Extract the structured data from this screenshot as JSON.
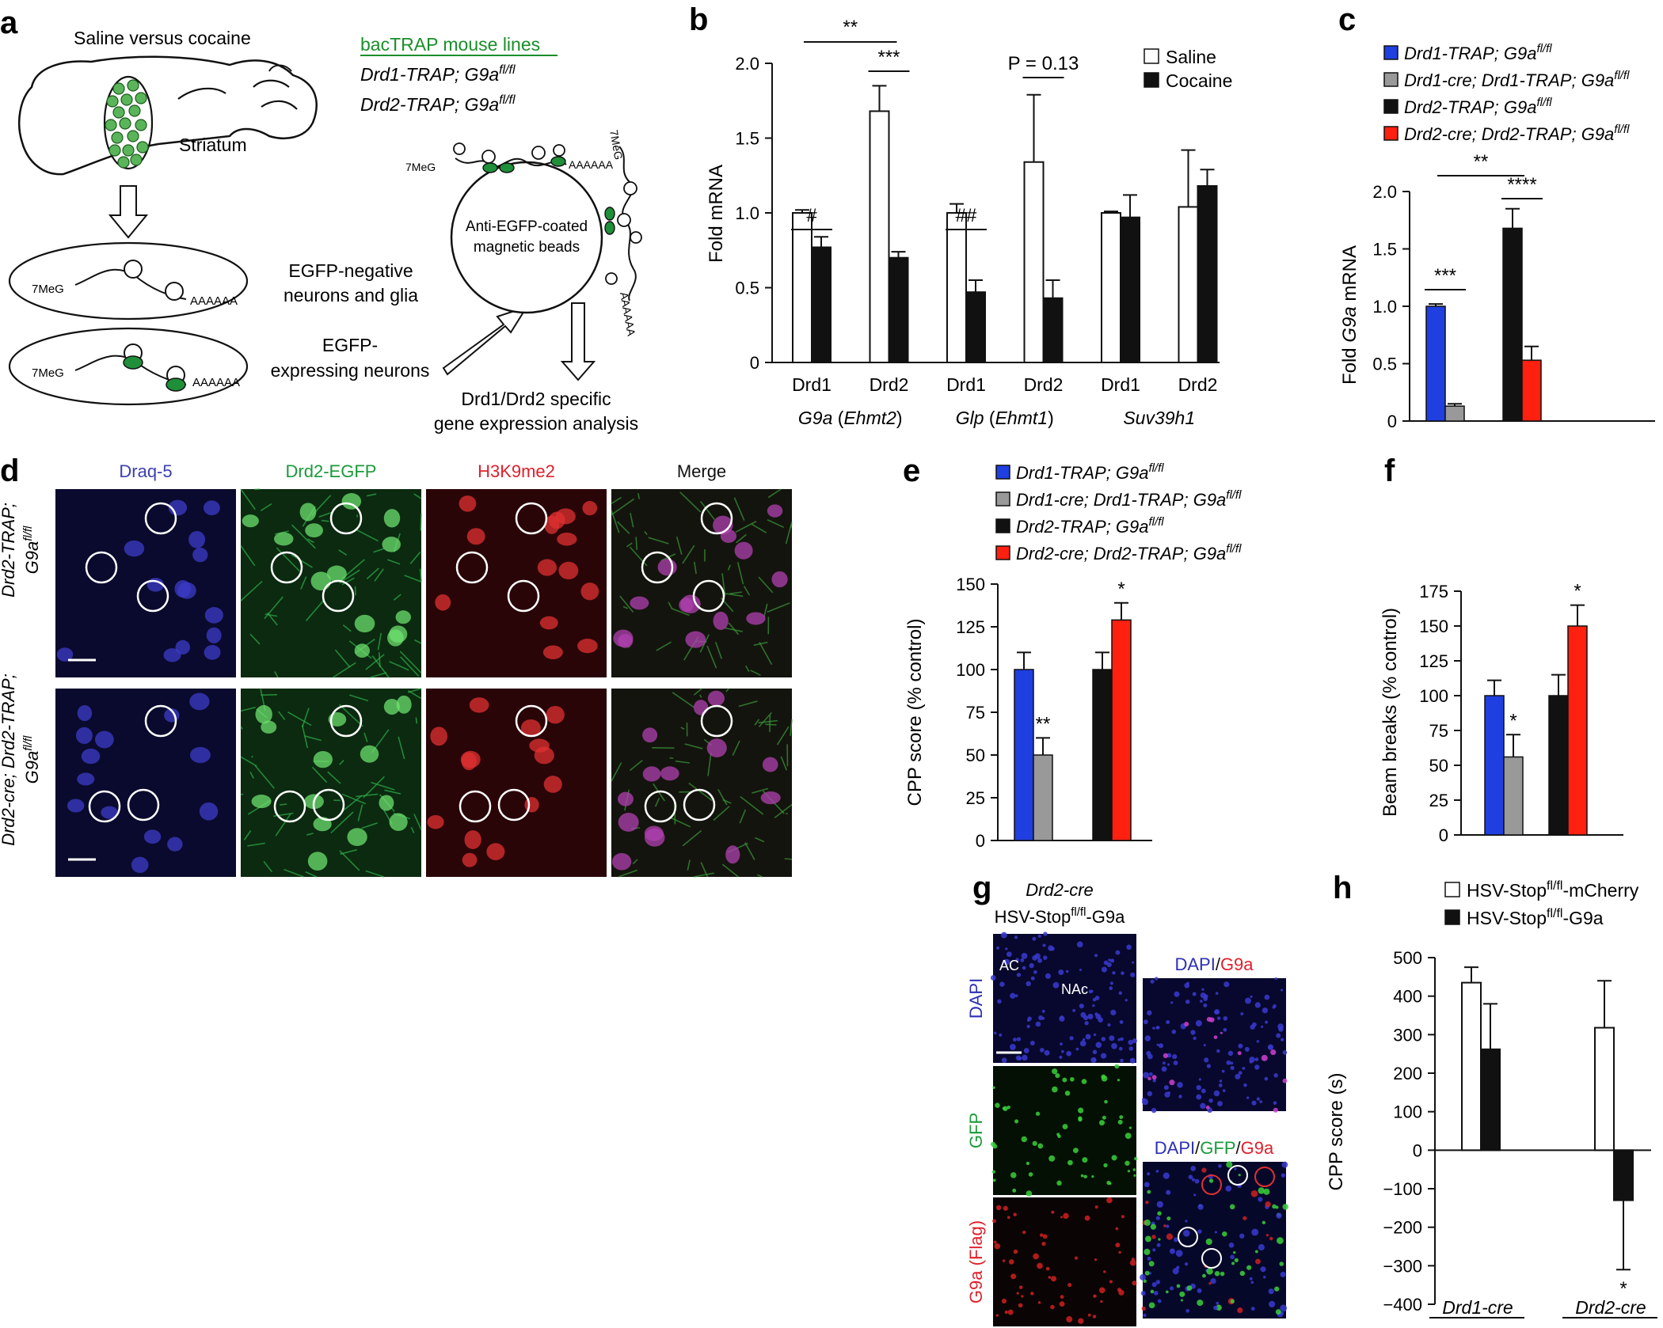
{
  "panels": {
    "a": {
      "letter": "a",
      "brain_title": "Saline versus cocaine",
      "striatum": "Striatum",
      "bactrap_title": "bacTRAP mouse lines",
      "line1": "Drd1-TRAP; G9a",
      "line1_sup": "fl/fl",
      "line2": "Drd2-TRAP; G9a",
      "line2_sup": "fl/fl",
      "cap": "7MeG",
      "polya": "AAAAAA",
      "beads_line1": "Anti-EGFP-coated",
      "beads_line2": "magnetic beads",
      "neg_line1": "EGFP-negative",
      "neg_line2": "neurons and glia",
      "pos_line1": "EGFP-",
      "pos_line2": "expressing neurons",
      "analysis_line1": "Drd1/Drd2 specific",
      "analysis_line2": "gene expression analysis"
    },
    "b": {
      "letter": "b"
    },
    "c": {
      "letter": "c"
    },
    "d": {
      "letter": "d",
      "columns": [
        "Draq-5",
        "Drd2-EGFP",
        "H3K9me2",
        "Merge"
      ],
      "column_colors": [
        "#3a3fb0",
        "#1a9a3a",
        "#e0202a",
        "#111111"
      ],
      "row1_line1": "Drd2-TRAP;",
      "row1_line2": "G9a",
      "row1_sup": "fl/fl",
      "row2_line1": "Drd2-cre; Drd2-TRAP;",
      "row2_line2": "G9a",
      "row2_sup": "fl/fl"
    },
    "e": {
      "letter": "e"
    },
    "f": {
      "letter": "f"
    },
    "g": {
      "letter": "g",
      "title1": "Drd2-cre",
      "title2_a": "HSV-Stop",
      "title2_sup": "fl/fl",
      "title2_b": "-G9a",
      "row_labels": [
        "DAPI",
        "GFP",
        "G9a (Flag)"
      ],
      "row_label_colors": [
        "#2b2fb5",
        "#1a9a3a",
        "#e0202a"
      ],
      "ac": "AC",
      "nac": "NAc",
      "merge1": [
        "DAPI",
        "/",
        "G9a"
      ],
      "merge2": [
        "DAPI",
        "/",
        "GFP",
        "/",
        "G9a"
      ]
    },
    "h": {
      "letter": "h"
    }
  },
  "chart_data": [
    {
      "id": "b",
      "type": "bar",
      "ylabel": "Fold mRNA",
      "ylim": [
        0,
        2.0
      ],
      "yticks": [
        "0",
        "0.5",
        "1.0",
        "1.5",
        "2.0"
      ],
      "categories": [
        "Drd1",
        "Drd2",
        "Drd1",
        "Drd2",
        "Drd1",
        "Drd2"
      ],
      "gene_groups": [
        {
          "name": "G9a",
          "suffix": " (",
          "sub": "Ehmt2",
          "end": ")"
        },
        {
          "name": "Glp",
          "suffix": " (",
          "sub": "Ehmt1",
          "end": ")"
        },
        {
          "name": "Suv39h1",
          "suffix": "",
          "sub": "",
          "end": ""
        }
      ],
      "series": [
        {
          "name": "Saline",
          "color": "#ffffff",
          "values": [
            1.0,
            1.68,
            1.0,
            1.34,
            1.0,
            1.04
          ],
          "errors": [
            0.02,
            0.17,
            0.06,
            0.45,
            0.01,
            0.38
          ]
        },
        {
          "name": "Cocaine",
          "color": "#111111",
          "values": [
            0.77,
            0.7,
            0.47,
            0.43,
            0.97,
            1.18
          ],
          "errors": [
            0.07,
            0.04,
            0.08,
            0.12,
            0.15,
            0.11
          ]
        }
      ],
      "legend_position": "top-right",
      "annotations": [
        {
          "text": "#",
          "pair": 0
        },
        {
          "text": "***",
          "pair": 1
        },
        {
          "text": "##",
          "pair": 2
        },
        {
          "text": "P = 0.13",
          "pair": 3
        },
        {
          "text": "**",
          "span": [
            0,
            1
          ]
        }
      ]
    },
    {
      "id": "c",
      "type": "bar",
      "ylabel_a": "Fold ",
      "ylabel_it": "G9a",
      "ylabel_b": " mRNA",
      "ylim": [
        0,
        2.0
      ],
      "yticks": [
        "0",
        "0.5",
        "1.0",
        "1.5",
        "2.0"
      ],
      "values": [
        1.0,
        0.13,
        1.68,
        0.53
      ],
      "errors": [
        0.02,
        0.02,
        0.17,
        0.12
      ],
      "colors": [
        "#1f3fe0",
        "#999999",
        "#111111",
        "#ff2010"
      ],
      "legend": [
        {
          "label": "Drd1-TRAP; G9a",
          "sup": "fl/fl",
          "color": "#1f3fe0"
        },
        {
          "label": "Drd1-cre; Drd1-TRAP; G9a",
          "sup": "fl/fl",
          "color": "#999999"
        },
        {
          "label": "Drd2-TRAP; G9a",
          "sup": "fl/fl",
          "color": "#111111"
        },
        {
          "label": "Drd2-cre; Drd2-TRAP; G9a",
          "sup": "fl/fl",
          "color": "#ff2010"
        }
      ],
      "annotations": [
        {
          "text": "***",
          "pair": 0
        },
        {
          "text": "****",
          "pair": 1
        },
        {
          "text": "**",
          "span": [
            0,
            2
          ]
        }
      ]
    },
    {
      "id": "e",
      "type": "bar",
      "ylabel": "CPP score (% control)",
      "ylim": [
        0,
        150
      ],
      "yticks": [
        "0",
        "25",
        "50",
        "75",
        "100",
        "125",
        "150"
      ],
      "values": [
        100,
        50,
        100,
        129
      ],
      "errors": [
        10,
        10,
        10,
        10
      ],
      "colors": [
        "#1f3fe0",
        "#999999",
        "#111111",
        "#ff2010"
      ],
      "legend": [
        {
          "label": "Drd1-TRAP; G9a",
          "sup": "fl/fl",
          "color": "#1f3fe0"
        },
        {
          "label": "Drd1-cre; Drd1-TRAP; G9a",
          "sup": "fl/fl",
          "color": "#999999"
        },
        {
          "label": "Drd2-TRAP; G9a",
          "sup": "fl/fl",
          "color": "#111111"
        },
        {
          "label": "Drd2-cre; Drd2-TRAP; G9a",
          "sup": "fl/fl",
          "color": "#ff2010"
        }
      ],
      "annotations": [
        {
          "text": "**",
          "bar": 1
        },
        {
          "text": "*",
          "bar": 3
        }
      ]
    },
    {
      "id": "f",
      "type": "bar",
      "ylabel": "Beam breaks (% control)",
      "ylim": [
        0,
        175
      ],
      "yticks": [
        "0",
        "25",
        "50",
        "75",
        "100",
        "125",
        "150",
        "175"
      ],
      "values": [
        100,
        56,
        100,
        150
      ],
      "errors": [
        11,
        16,
        15,
        15
      ],
      "colors": [
        "#1f3fe0",
        "#999999",
        "#111111",
        "#ff2010"
      ],
      "annotations": [
        {
          "text": "*",
          "bar": 1
        },
        {
          "text": "*",
          "bar": 3
        }
      ]
    },
    {
      "id": "h",
      "type": "bar",
      "ylabel": "CPP score (s)",
      "ylim": [
        -400,
        500
      ],
      "yticks": [
        "−400",
        "−300",
        "−200",
        "−100",
        "0",
        "100",
        "200",
        "300",
        "400",
        "500"
      ],
      "ytick_values": [
        -400,
        -300,
        -200,
        -100,
        0,
        100,
        200,
        300,
        400,
        500
      ],
      "groups": [
        "Drd1-cre",
        "Drd2-cre"
      ],
      "series": [
        {
          "name": "HSV-Stop",
          "sup": "fl/fl",
          "name_end": "-mCherry",
          "color": "#ffffff",
          "values": [
            435,
            318
          ],
          "errors": [
            40,
            122
          ]
        },
        {
          "name": "HSV-Stop",
          "sup": "fl/fl",
          "name_end": "-G9a",
          "color": "#111111",
          "values": [
            262,
            -130
          ],
          "errors": [
            118,
            180
          ]
        }
      ],
      "annotations": [
        {
          "text": "*",
          "group": 1,
          "series": 1
        }
      ]
    }
  ]
}
